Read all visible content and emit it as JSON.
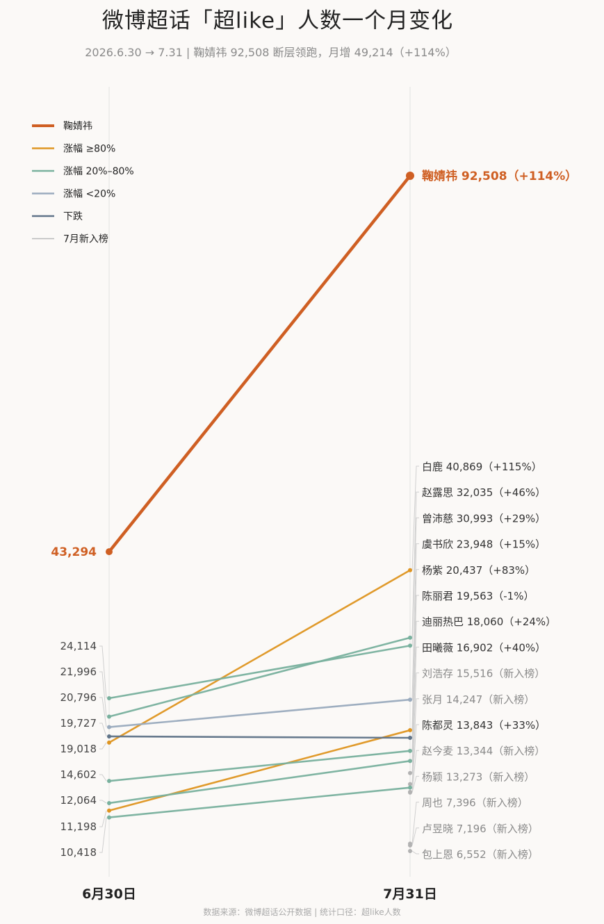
{
  "title": "微博超话「超like」人数一个月变化",
  "subtitle": "2026.6.30 → 7.31 | 鞠婧祎 92,508 断层领跑，月增 49,214（+114%）",
  "footer": "数据来源：微博超话公开数据 | 统计口径：超like人数",
  "colors": {
    "highlight": "#cf5f23",
    "high": "#df9521",
    "mid": "#79b19e",
    "low": "#9aabbe",
    "down": "#5f7388",
    "new": "#b9b9b9",
    "axis": "#e2e2e2",
    "text": "#333333",
    "muted": "#8a8a8a"
  },
  "legend": [
    {
      "label": "鞠婧祎",
      "category": "highlight"
    },
    {
      "label": "涨幅 ≥80%",
      "category": "high"
    },
    {
      "label": "涨幅 20%–80%",
      "category": "mid"
    },
    {
      "label": "涨幅 <20%",
      "category": "low"
    },
    {
      "label": "下跌",
      "category": "down"
    },
    {
      "label": "7月新入榜",
      "category": "new"
    }
  ],
  "chart_data": {
    "type": "line",
    "x": [
      "6月30日",
      "7月31日"
    ],
    "start_labels": [
      "43,294",
      "24,114",
      "21,996",
      "20,796",
      "19,727",
      "19,018",
      "14,602",
      "12,064",
      "11,198",
      "10,418"
    ],
    "end_labels": [
      "鞠婧祎  92,508（+114%）",
      "白鹿  40,869（+115%）",
      "赵露思  32,035（+46%）",
      "曾沛慈  30,993（+29%）",
      "虞书欣  23,948（+15%）",
      "杨紫  20,437（+83%）",
      "陈丽君  19,563（-1%）",
      "迪丽热巴  18,060（+24%）",
      "田曦薇  16,902（+40%）",
      "刘浩存  15,516（新入榜）",
      "张月  14,247（新入榜）",
      "陈都灵  13,843（+33%）",
      "赵今麦  13,344（新入榜）",
      "杨颖  13,273（新入榜）",
      "周也  7,396（新入榜）",
      "卢昱晓  7,196（新入榜）",
      "包上恩  6,552（新入榜）"
    ],
    "series": [
      {
        "name": "鞠婧祎",
        "values": [
          43294,
          92508
        ],
        "change": "+114%",
        "category": "highlight"
      },
      {
        "name": "白鹿",
        "values": [
          19018,
          40869
        ],
        "change": "+115%",
        "category": "high"
      },
      {
        "name": "赵露思",
        "values": [
          21996,
          32035
        ],
        "change": "+46%",
        "category": "mid"
      },
      {
        "name": "曾沛慈",
        "values": [
          24114,
          30993
        ],
        "change": "+29%",
        "category": "mid"
      },
      {
        "name": "虞书欣",
        "values": [
          20796,
          23948
        ],
        "change": "+15%",
        "category": "low"
      },
      {
        "name": "杨紫",
        "values": [
          11198,
          20437
        ],
        "change": "+83%",
        "category": "high"
      },
      {
        "name": "陈丽君",
        "values": [
          19727,
          19563
        ],
        "change": "-1%",
        "category": "down"
      },
      {
        "name": "迪丽热巴",
        "values": [
          14602,
          18060
        ],
        "change": "+24%",
        "category": "mid"
      },
      {
        "name": "田曦薇",
        "values": [
          12064,
          16902
        ],
        "change": "+40%",
        "category": "mid"
      },
      {
        "name": "刘浩存",
        "values": [
          null,
          15516
        ],
        "change": "新入榜",
        "category": "new"
      },
      {
        "name": "张月",
        "values": [
          null,
          14247
        ],
        "change": "新入榜",
        "category": "new"
      },
      {
        "name": "陈都灵",
        "values": [
          10418,
          13843
        ],
        "change": "+33%",
        "category": "mid"
      },
      {
        "name": "赵今麦",
        "values": [
          null,
          13344
        ],
        "change": "新入榜",
        "category": "new"
      },
      {
        "name": "杨颖",
        "values": [
          null,
          13273
        ],
        "change": "新入榜",
        "category": "new"
      },
      {
        "name": "周也",
        "values": [
          null,
          7396
        ],
        "change": "新入榜",
        "category": "new"
      },
      {
        "name": "卢昱晓",
        "values": [
          null,
          7196
        ],
        "change": "新入榜",
        "category": "new"
      },
      {
        "name": "包上恩",
        "values": [
          null,
          6552
        ],
        "change": "新入榜",
        "category": "new"
      }
    ]
  }
}
